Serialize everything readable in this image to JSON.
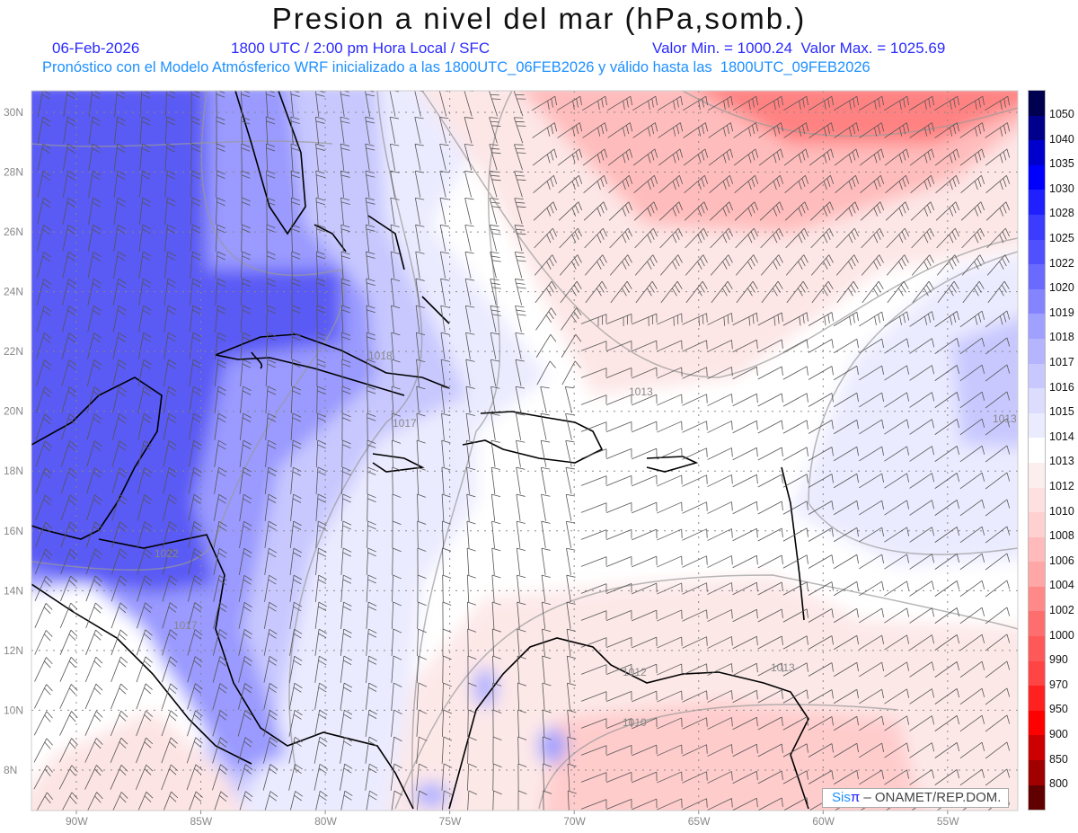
{
  "header": {
    "title": "Presion a nivel del mar (hPa,somb.)",
    "date": "06-Feb-2026",
    "time": "1800 UTC / 2:00 pm Hora Local / SFC",
    "min_max": "Valor Min. = 1000.24  Valor Max. = 1025.69",
    "forecast": "Pronóstico con el Modelo Atmósferico WRF inicializado a las 1800UTC_06FEB2026 y válido hasta las  1800UTC_09FEB2026"
  },
  "axes": {
    "lon_labels": [
      "90W",
      "85W",
      "80W",
      "75W",
      "70W",
      "65W",
      "60W",
      "55W"
    ],
    "lat_labels": [
      "30N",
      "28N",
      "26N",
      "24N",
      "22N",
      "20N",
      "18N",
      "16N",
      "14N",
      "12N",
      "10N",
      "8N"
    ]
  },
  "contour_labels": [
    "1022",
    "1018",
    "1017",
    "1017",
    "1013",
    "1013",
    "1013",
    "1012",
    "1010"
  ],
  "colorbar": {
    "labels": [
      "1050",
      "1040",
      "1035",
      "1030",
      "1028",
      "1025",
      "1022",
      "1020",
      "1019",
      "1018",
      "1017",
      "1016",
      "1015",
      "1014",
      "1013",
      "1012",
      "1010",
      "1008",
      "1006",
      "1004",
      "1002",
      "1000",
      "990",
      "970",
      "950",
      "900",
      "850",
      "800"
    ],
    "colors": [
      "#000050",
      "#00008c",
      "#0000cc",
      "#0000ff",
      "#2020ff",
      "#3c3cff",
      "#5050ff",
      "#6a6aff",
      "#8484ff",
      "#a0a0ff",
      "#b4b4ff",
      "#c8c8ff",
      "#dcdcff",
      "#ebebff",
      "#ffffff",
      "#fdeeee",
      "#ffe0e0",
      "#ffd0d0",
      "#ffbbbb",
      "#ffa6a6",
      "#ff8888",
      "#ff6e6e",
      "#ff5858",
      "#ff4444",
      "#ff2020",
      "#ff0000",
      "#cc0000",
      "#a00000",
      "#600000"
    ]
  },
  "credit": {
    "sis": "Sis",
    "pi": "π",
    "rest": " – ONAMET/REP.DOM."
  }
}
